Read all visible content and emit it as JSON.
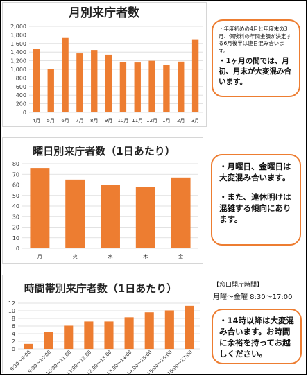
{
  "chart_data": [
    {
      "type": "bar",
      "title": "月別来庁者数",
      "categories": [
        "4月",
        "5月",
        "6月",
        "7月",
        "8月",
        "9月",
        "10月",
        "11月",
        "12月",
        "1月",
        "2月",
        "3月"
      ],
      "values": [
        1480,
        1000,
        1730,
        1370,
        1450,
        1340,
        1170,
        1160,
        1200,
        1110,
        1180,
        1700
      ],
      "ylim": [
        0,
        2000
      ],
      "yticks": [
        "0",
        "200",
        "400",
        "600",
        "800",
        "1,000",
        "1,200",
        "1,400",
        "1,600",
        "1,800",
        "2,000"
      ],
      "bar_color": "#ed7d31",
      "grid": true
    },
    {
      "type": "bar",
      "title": "曜日別来庁者数（1日あたり）",
      "categories": [
        "月",
        "火",
        "水",
        "木",
        "金"
      ],
      "values": [
        76,
        65,
        60,
        58,
        67
      ],
      "ylim": [
        0,
        80
      ],
      "yticks": [
        "0",
        "10",
        "20",
        "30",
        "40",
        "50",
        "60",
        "70",
        "80"
      ],
      "bar_color": "#ed7d31",
      "grid": true
    },
    {
      "type": "bar",
      "title": "時間帯別来庁者数（1日あたり）",
      "categories": [
        "8:30～9:00",
        "9:00～10:00",
        "10:00～11:00",
        "11:00～12:00",
        "12:00～13:00",
        "13:00～14:00",
        "14:00～15:00",
        "15:00～16:00",
        "16:00～17:00"
      ],
      "values": [
        1.3,
        4.5,
        6.1,
        7.2,
        7.2,
        8.3,
        9.6,
        10.1,
        11.3
      ],
      "ylim": [
        0,
        12
      ],
      "yticks": [
        "0",
        "2",
        "4",
        "6",
        "8",
        "10",
        "12"
      ],
      "bar_color": "#ed7d31",
      "grid": true
    }
  ],
  "notes": {
    "monthly_small": "・年度初めの4月と年度末の3月、保険料の年間金額が決定する6月後半は連日混み合います。",
    "monthly_big": "・1ヶ月の間では、月初、月末が大変混み合います。",
    "weekday_1": "・月曜日、金曜日は大変混み合います。",
    "weekday_2": "・また、連休明けは混雑する傾向にあります。",
    "hourly": "・14時以降は大変混み合います。お時間に余裕を持ってお越しください。"
  },
  "office_hours": {
    "label": "【窓口開庁時間】",
    "value": "月曜～金曜 8:30～17:00"
  },
  "colors": {
    "accent": "#ed7d31",
    "grid": "#d9d9d9"
  }
}
